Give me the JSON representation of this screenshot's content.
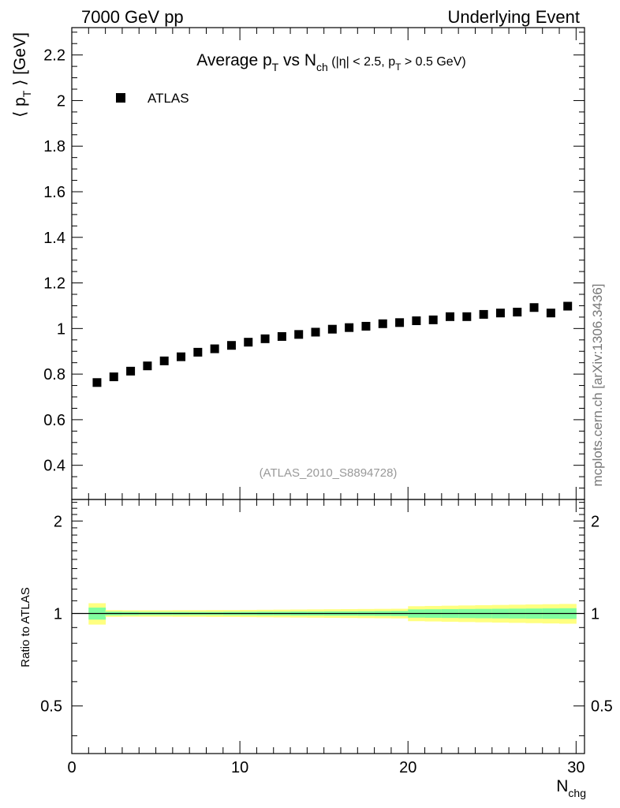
{
  "header": {
    "left": "7000 GeV pp",
    "right": "Underlying Event"
  },
  "side_note": "mcplots.cern.ch [arXiv:1306.3436]",
  "analysis_tag": "(ATLAS_2010_S8894728)",
  "colors": {
    "marker": "#000000",
    "band_inner": "#80ff9f",
    "band_outer": "#ffff80",
    "reference_line": "#000000"
  },
  "chart_data": [
    {
      "type": "scatter",
      "title": {
        "p1": "Average p",
        "p1_sub": "T",
        "p2": " vs N",
        "p2_sub": "ch",
        "p3": " (|η| < 2.5, p",
        "p3_sub": "T",
        "p4": " > 0.5 GeV)"
      },
      "ylabel": {
        "p1": "⟨ p",
        "p1_sub": "T",
        "p2": " ⟩ [GeV]"
      },
      "xlim": [
        0,
        30.5
      ],
      "ylim": [
        0.25,
        2.32
      ],
      "y_ticks": [
        0.4,
        0.6,
        0.8,
        1,
        1.2,
        1.4,
        1.6,
        1.8,
        2,
        2.2
      ],
      "y_tick_labels": [
        "0.4",
        "0.6",
        "0.8",
        "1",
        "1.2",
        "1.4",
        "1.6",
        "1.8",
        "2",
        "2.2"
      ],
      "legend": {
        "label": "ATLAS",
        "position": "top-left"
      },
      "series": [
        {
          "name": "ATLAS",
          "x": [
            1.5,
            2.5,
            3.5,
            4.5,
            5.5,
            6.5,
            7.5,
            8.5,
            9.5,
            10.5,
            11.5,
            12.5,
            13.5,
            14.5,
            15.5,
            16.5,
            17.5,
            18.5,
            19.5,
            20.5,
            21.5,
            22.5,
            23.5,
            24.5,
            25.5,
            26.5,
            27.5,
            28.5,
            29.5
          ],
          "y": [
            0.763,
            0.788,
            0.813,
            0.836,
            0.858,
            0.876,
            0.896,
            0.911,
            0.926,
            0.94,
            0.955,
            0.965,
            0.974,
            0.984,
            0.997,
            1.004,
            1.01,
            1.021,
            1.026,
            1.034,
            1.038,
            1.052,
            1.052,
            1.062,
            1.068,
            1.072,
            1.092,
            1.068,
            1.098
          ]
        }
      ]
    },
    {
      "type": "area",
      "ylabel": "Ratio to ATLAS",
      "xlabel": {
        "main": "N",
        "sub": "chg"
      },
      "xlim": [
        0,
        30.5
      ],
      "ylim": [
        0.35,
        2.35
      ],
      "log_scale_y": true,
      "x_ticks": [
        0,
        10,
        20,
        30
      ],
      "x_tick_labels": [
        "0",
        "10",
        "20",
        "30"
      ],
      "y_ticks": [
        0.5,
        1,
        2
      ],
      "y_tick_labels": [
        "0.5",
        "1",
        "2"
      ],
      "reference_value": 1,
      "bands": {
        "x_edges": [
          1,
          2,
          3,
          4,
          5,
          6,
          7,
          8,
          9,
          10,
          11,
          12,
          13,
          14,
          15,
          16,
          17,
          18,
          19,
          20,
          21,
          22,
          23,
          24,
          25,
          26,
          27,
          28,
          29,
          30
        ],
        "inner_halfwidth": [
          0.045,
          0.014,
          0.013,
          0.012,
          0.012,
          0.012,
          0.012,
          0.012,
          0.013,
          0.013,
          0.014,
          0.014,
          0.015,
          0.015,
          0.016,
          0.016,
          0.017,
          0.018,
          0.019,
          0.031,
          0.032,
          0.033,
          0.034,
          0.035,
          0.036,
          0.037,
          0.038,
          0.039,
          0.04
        ],
        "outer_halfwidth": [
          0.08,
          0.025,
          0.024,
          0.024,
          0.024,
          0.025,
          0.025,
          0.026,
          0.026,
          0.027,
          0.028,
          0.029,
          0.03,
          0.031,
          0.032,
          0.033,
          0.034,
          0.035,
          0.036,
          0.056,
          0.058,
          0.06,
          0.062,
          0.064,
          0.066,
          0.068,
          0.07,
          0.072,
          0.074
        ]
      }
    }
  ]
}
